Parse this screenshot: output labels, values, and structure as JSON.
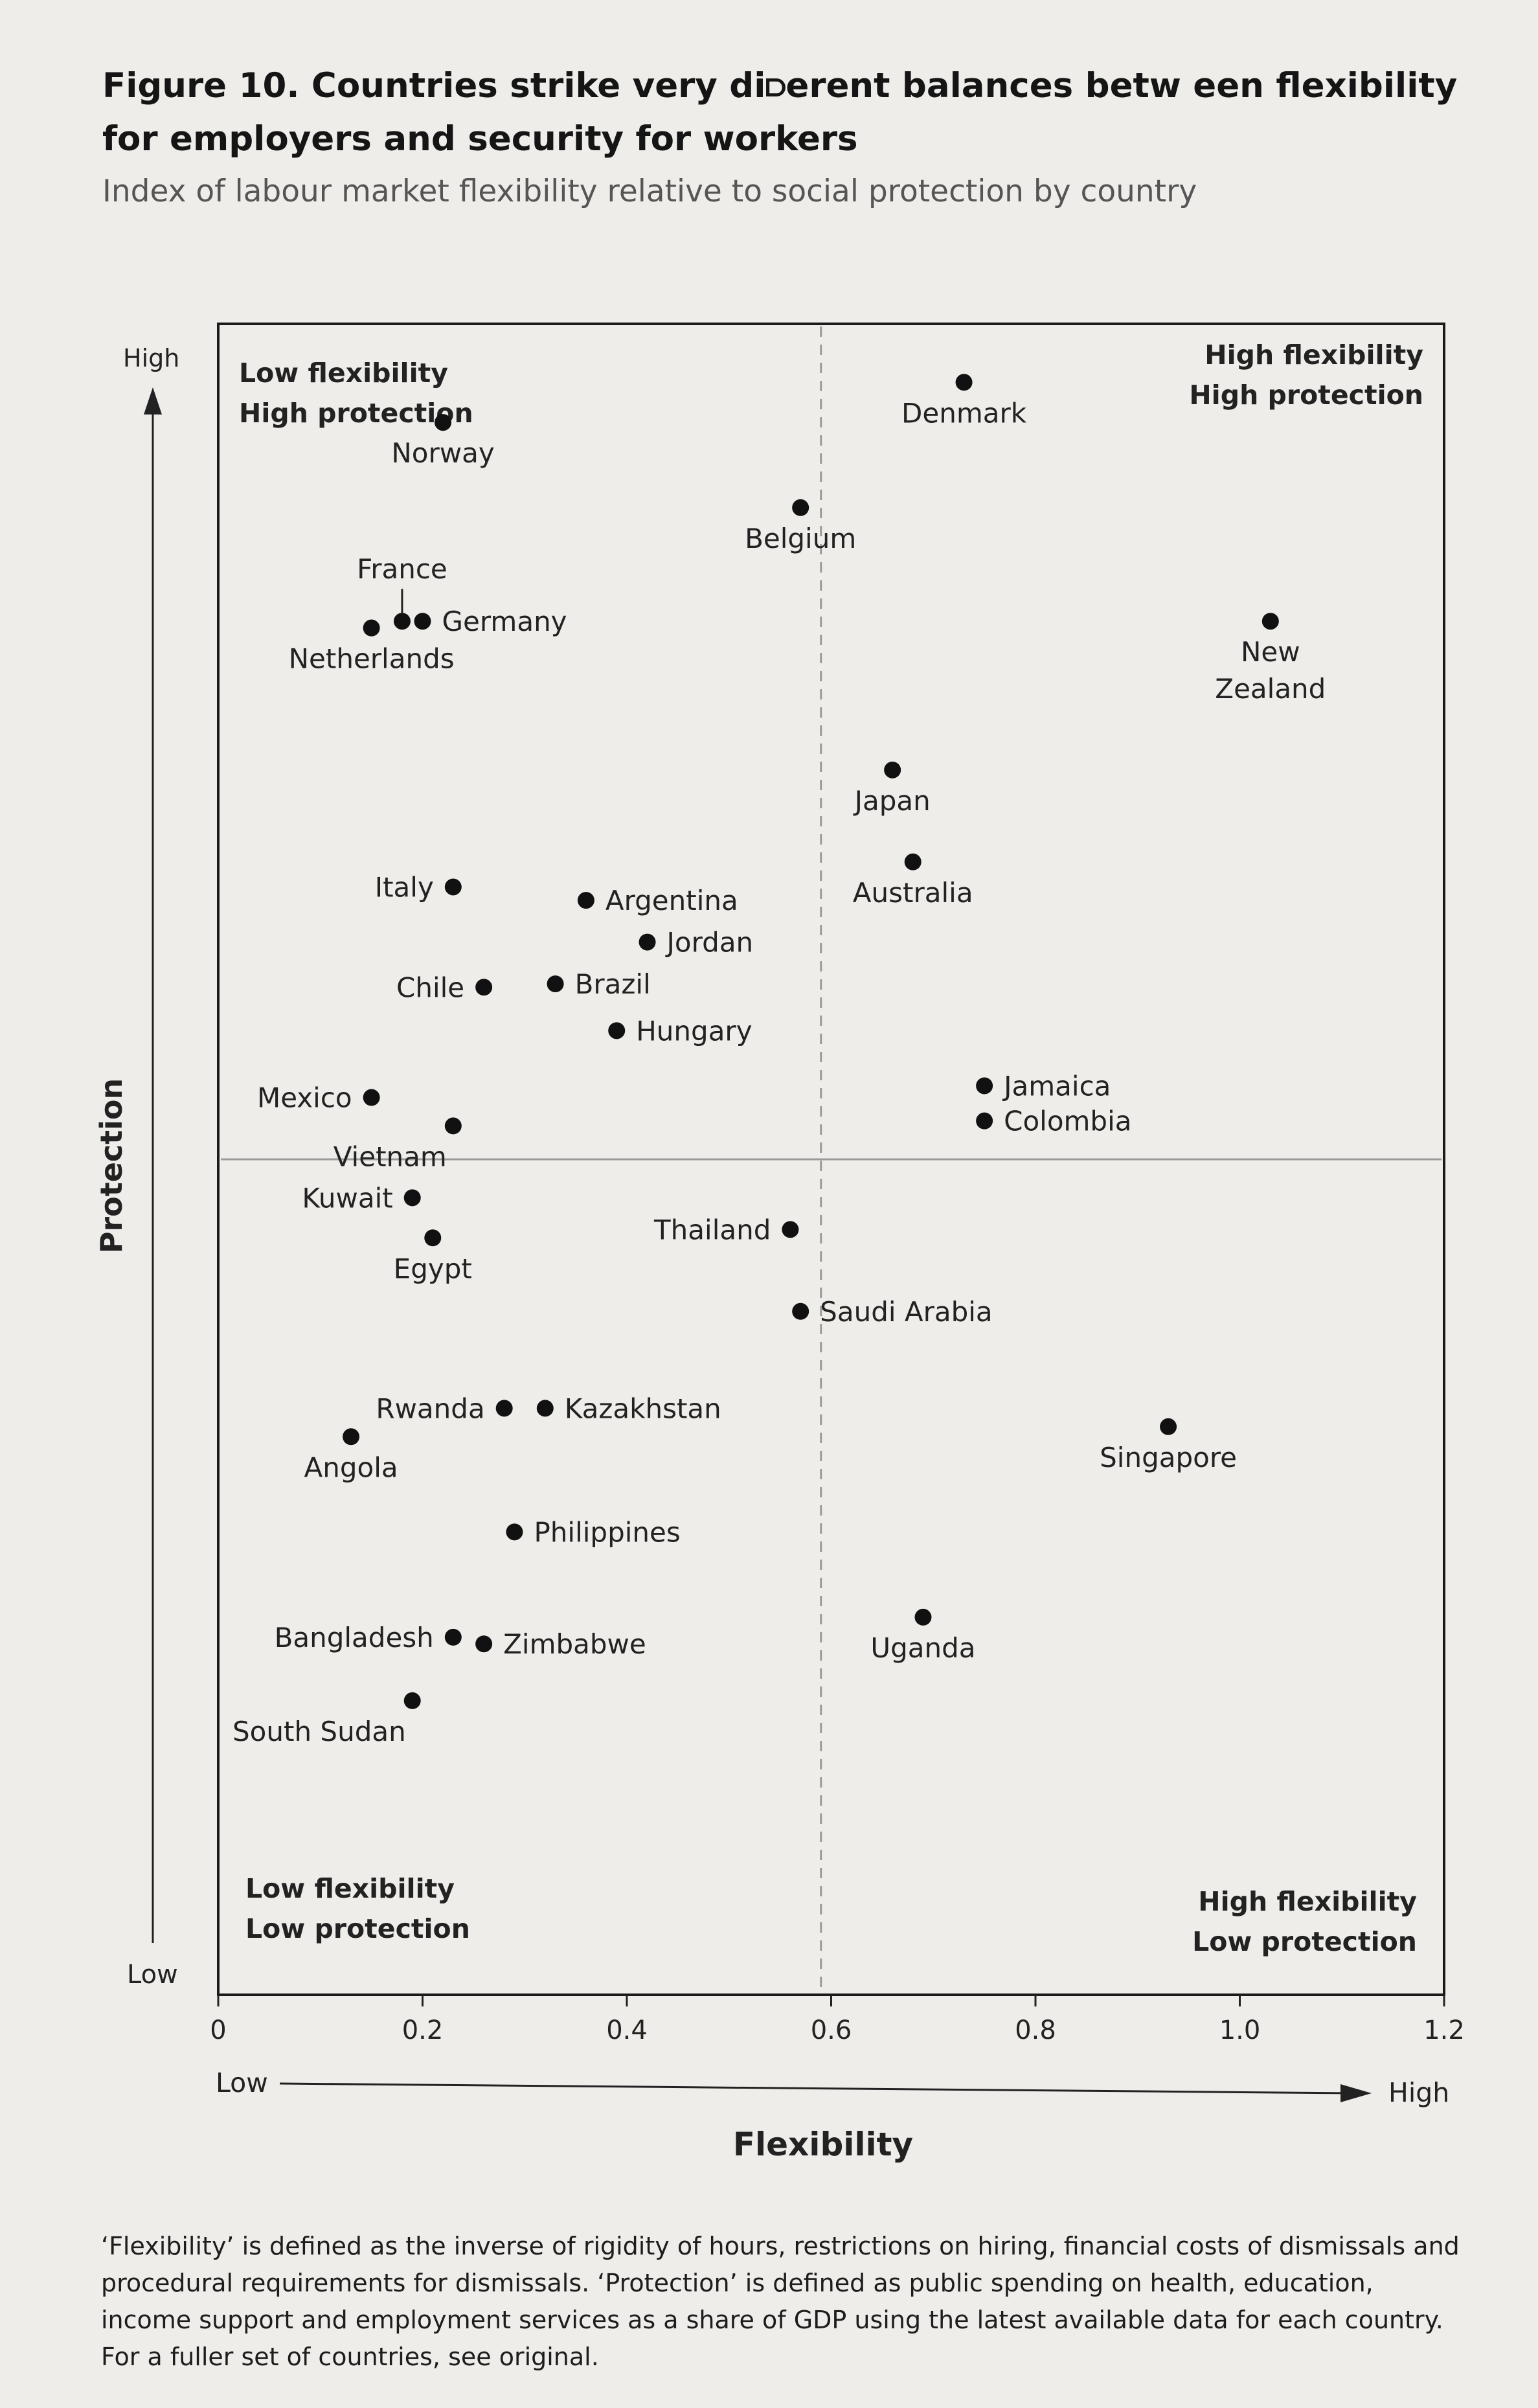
{
  "figure": {
    "title": "Figure 10. Countries strike very di⫐erent balances betw een flexibility for employers and security for workers",
    "subtitle": "Index of labour market flexibility relative to social protection by country",
    "note": "‘Flexibility’ is defined as the inverse of rigidity of hours, restrictions on hiring, financial costs of dismissals and procedural requirements for dismissals. ‘Protection’ is defined as public spending on health, education, income support and employment services as a share of GDP using the latest available data for each country. For a fuller set of countries, see original."
  },
  "chart_data": {
    "type": "scatter",
    "xlabel": "Flexibility",
    "ylabel": "Protection",
    "xlim": [
      0,
      1.2
    ],
    "x_ticks": [
      "0",
      "0.2",
      "0.4",
      "0.6",
      "0.8",
      "1.0",
      "1.2"
    ],
    "x_tick_values": [
      0,
      0.2,
      0.4,
      0.6,
      0.8,
      1.0,
      1.2
    ],
    "x_low_label": "Low",
    "x_high_label": "High",
    "y_low_label": "Low",
    "y_high_label": "High",
    "x_divider": 0.59,
    "y_divider": 0.5,
    "quadrants": {
      "top_left": [
        "Low flexibility",
        "High protection"
      ],
      "top_right": [
        "High flexibility",
        "High protection"
      ],
      "bottom_left": [
        "Low flexibility",
        "Low protection"
      ],
      "bottom_right": [
        "High flexibility",
        "Low protection"
      ]
    },
    "points": [
      {
        "name": "Denmark",
        "x": 0.73,
        "y": 0.965,
        "label": "below"
      },
      {
        "name": "Norway",
        "x": 0.22,
        "y": 0.941,
        "label": "below"
      },
      {
        "name": "Belgium",
        "x": 0.57,
        "y": 0.89,
        "label": "below"
      },
      {
        "name": "Netherlands",
        "x": 0.15,
        "y": 0.818,
        "label": "below"
      },
      {
        "name": "France",
        "x": 0.18,
        "y": 0.822,
        "label": "above-leader"
      },
      {
        "name": "Germany",
        "x": 0.2,
        "y": 0.822,
        "label": "right"
      },
      {
        "name": "New Zealand",
        "x": 1.03,
        "y": 0.822,
        "label": "below",
        "label_lines": [
          "New",
          "Zealand"
        ]
      },
      {
        "name": "Japan",
        "x": 0.66,
        "y": 0.733,
        "label": "below"
      },
      {
        "name": "Australia",
        "x": 0.68,
        "y": 0.678,
        "label": "below"
      },
      {
        "name": "Argentina",
        "x": 0.36,
        "y": 0.655,
        "label": "right"
      },
      {
        "name": "Jordan",
        "x": 0.42,
        "y": 0.63,
        "label": "right"
      },
      {
        "name": "Italy",
        "x": 0.23,
        "y": 0.663,
        "label": "left"
      },
      {
        "name": "Brazil",
        "x": 0.33,
        "y": 0.605,
        "label": "right"
      },
      {
        "name": "Chile",
        "x": 0.26,
        "y": 0.603,
        "label": "left"
      },
      {
        "name": "Hungary",
        "x": 0.39,
        "y": 0.577,
        "label": "right"
      },
      {
        "name": "Jamaica",
        "x": 0.75,
        "y": 0.544,
        "label": "right"
      },
      {
        "name": "Colombia",
        "x": 0.75,
        "y": 0.523,
        "label": "right"
      },
      {
        "name": "Mexico",
        "x": 0.15,
        "y": 0.537,
        "label": "left"
      },
      {
        "name": "Vietnam",
        "x": 0.23,
        "y": 0.52,
        "label": "below-left"
      },
      {
        "name": "Kuwait",
        "x": 0.19,
        "y": 0.477,
        "label": "left"
      },
      {
        "name": "Egypt",
        "x": 0.21,
        "y": 0.453,
        "label": "below"
      },
      {
        "name": "Thailand",
        "x": 0.56,
        "y": 0.458,
        "label": "left"
      },
      {
        "name": "Saudi Arabia",
        "x": 0.57,
        "y": 0.409,
        "label": "right"
      },
      {
        "name": "Rwanda",
        "x": 0.28,
        "y": 0.351,
        "label": "left"
      },
      {
        "name": "Kazakhstan",
        "x": 0.32,
        "y": 0.351,
        "label": "right"
      },
      {
        "name": "Angola",
        "x": 0.13,
        "y": 0.334,
        "label": "below"
      },
      {
        "name": "Singapore",
        "x": 0.93,
        "y": 0.34,
        "label": "below"
      },
      {
        "name": "Philippines",
        "x": 0.29,
        "y": 0.277,
        "label": "right"
      },
      {
        "name": "Uganda",
        "x": 0.69,
        "y": 0.226,
        "label": "below"
      },
      {
        "name": "Bangladesh",
        "x": 0.23,
        "y": 0.214,
        "label": "left"
      },
      {
        "name": "Zimbabwe",
        "x": 0.26,
        "y": 0.21,
        "label": "right"
      },
      {
        "name": "South Sudan",
        "x": 0.19,
        "y": 0.176,
        "label": "below-left"
      }
    ]
  }
}
